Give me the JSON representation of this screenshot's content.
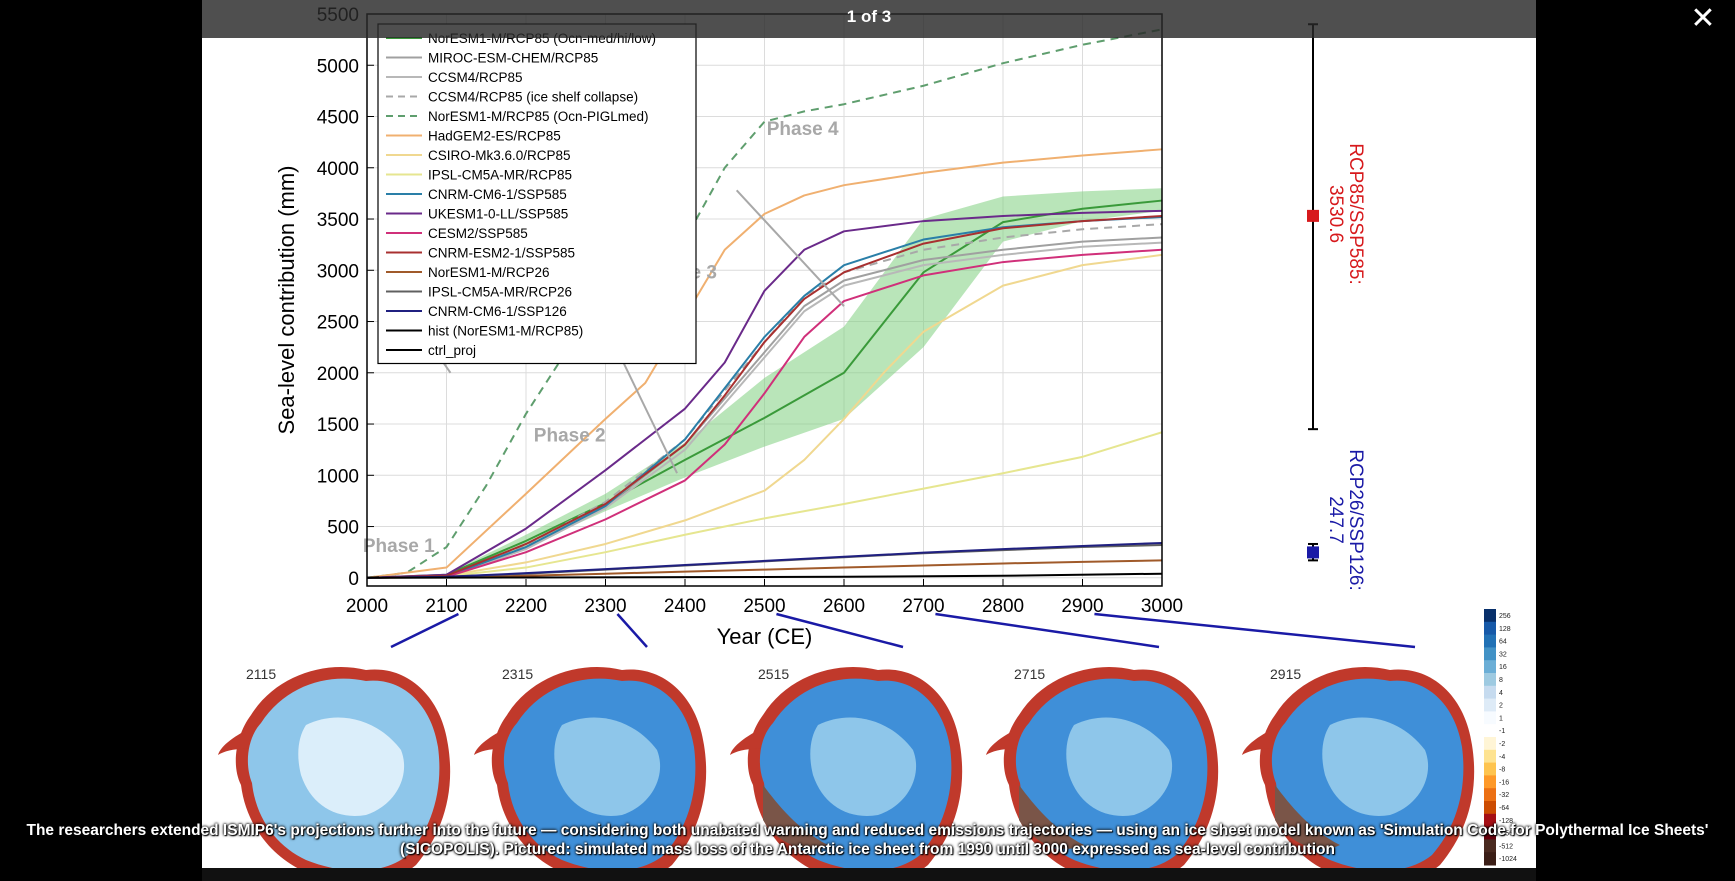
{
  "viewer": {
    "counter": "1 of 3",
    "close_glyph": "✕",
    "caption_line1": "The researchers extended ISMIP6's projections further into the future — considering both unabated warming and reduced emissions trajectories — using an ice sheet model known as 'Simulation Code for Polythermal Ice Sheets'",
    "caption_line2": "(SICOPOLIS). Pictured: simulated mass loss of the Antarctic ice sheet from 1990 until 3000 expressed as sea-level contribution"
  },
  "colors": {
    "red": "#d7191c",
    "blue": "#1a1aa6",
    "ensemble_fill": "#7fcf7f",
    "phase_label": "#a8a8a8"
  },
  "chart_data": {
    "type": "line",
    "xlabel": "Year (CE)",
    "ylabel": "Sea-level contribution (mm)",
    "xlim": [
      2000,
      3000
    ],
    "ylim": [
      -80,
      5500
    ],
    "xticks": [
      2000,
      2100,
      2200,
      2300,
      2400,
      2500,
      2600,
      2700,
      2800,
      2900,
      3000
    ],
    "yticks": [
      0,
      500,
      1000,
      1500,
      2000,
      2500,
      3000,
      3500,
      4000,
      4500,
      5000,
      5500
    ],
    "grid": true,
    "legend_position": "top-left",
    "phases": [
      {
        "label": "Phase 1",
        "x": 2040,
        "y": 250
      },
      {
        "label": "Phase 2",
        "x": 2255,
        "y": 1330
      },
      {
        "label": "Phase 3",
        "x": 2395,
        "y": 2920
      },
      {
        "label": "Phase 4",
        "x": 2548,
        "y": 4320
      }
    ],
    "band": {
      "x": [
        2100,
        2200,
        2300,
        2400,
        2500,
        2600,
        2700,
        2800,
        2900,
        3000
      ],
      "upper": [
        40,
        420,
        820,
        1320,
        1950,
        2450,
        3500,
        3720,
        3770,
        3800
      ],
      "lower": [
        20,
        300,
        650,
        980,
        1280,
        1550,
        2250,
        3280,
        3480,
        3580
      ]
    },
    "series": [
      {
        "name": "NorESM1-M/RCP85 (Ocn-med/hi/low)",
        "color": "#3a9a3a",
        "dash": false,
        "x": [
          2000,
          2100,
          2200,
          2300,
          2400,
          2500,
          2600,
          2700,
          2800,
          2900,
          3000
        ],
        "y": [
          0,
          30,
          360,
          730,
          1150,
          1560,
          2000,
          2980,
          3470,
          3600,
          3680
        ]
      },
      {
        "name": "MIROC-ESM-CHEM/RCP85",
        "color": "#a0a0a0",
        "dash": false,
        "x": [
          2000,
          2100,
          2200,
          2300,
          2400,
          2500,
          2550,
          2600,
          2700,
          2800,
          2900,
          3000
        ],
        "y": [
          0,
          10,
          300,
          700,
          1300,
          2200,
          2650,
          2900,
          3100,
          3200,
          3280,
          3320
        ]
      },
      {
        "name": "CCSM4/RCP85",
        "color": "#b8b8b8",
        "dash": false,
        "x": [
          2000,
          2100,
          2200,
          2300,
          2400,
          2500,
          2550,
          2600,
          2700,
          2800,
          2900,
          3000
        ],
        "y": [
          0,
          10,
          280,
          680,
          1250,
          2150,
          2600,
          2850,
          3050,
          3150,
          3230,
          3270
        ]
      },
      {
        "name": "CCSM4/RCP85 (ice shelf collapse)",
        "color": "#a8a8a8",
        "dash": true,
        "x": [
          2000,
          2100,
          2200,
          2300,
          2400,
          2500,
          2550,
          2600,
          2700,
          2800,
          2900,
          3000
        ],
        "y": [
          0,
          15,
          320,
          740,
          1350,
          2300,
          2750,
          2980,
          3200,
          3320,
          3400,
          3450
        ]
      },
      {
        "name": "NorESM1-M/RCP85 (Ocn-PIGLmed)",
        "color": "#5f9e6e",
        "dash": true,
        "x": [
          2000,
          2050,
          2100,
          2150,
          2200,
          2250,
          2300,
          2350,
          2400,
          2450,
          2500,
          2550,
          2600,
          2700,
          2800,
          2900,
          3000
        ],
        "y": [
          0,
          50,
          300,
          900,
          1600,
          2200,
          2500,
          2800,
          3300,
          4000,
          4450,
          4550,
          4620,
          4800,
          5020,
          5200,
          5350
        ]
      },
      {
        "name": "HadGEM2-ES/RCP85",
        "color": "#f0b070",
        "dash": false,
        "x": [
          2000,
          2100,
          2200,
          2300,
          2350,
          2400,
          2450,
          2500,
          2550,
          2600,
          2700,
          2800,
          2900,
          3000
        ],
        "y": [
          0,
          100,
          820,
          1550,
          1900,
          2550,
          3200,
          3550,
          3730,
          3830,
          3950,
          4050,
          4120,
          4180
        ]
      },
      {
        "name": "CSIRO-Mk3.6.0/RCP85",
        "color": "#f0d890",
        "dash": false,
        "x": [
          2000,
          2100,
          2200,
          2300,
          2400,
          2500,
          2550,
          2600,
          2650,
          2700,
          2800,
          2900,
          3000
        ],
        "y": [
          0,
          20,
          150,
          330,
          560,
          850,
          1150,
          1550,
          2000,
          2400,
          2850,
          3050,
          3150
        ]
      },
      {
        "name": "IPSL-CM5A-MR/RCP85",
        "color": "#e6e690",
        "dash": false,
        "x": [
          2000,
          2100,
          2200,
          2300,
          2400,
          2500,
          2600,
          2700,
          2800,
          2900,
          3000
        ],
        "y": [
          0,
          15,
          100,
          250,
          420,
          580,
          720,
          870,
          1020,
          1180,
          1420
        ]
      },
      {
        "name": "CNRM-CM6-1/SSP585",
        "color": "#2a7fa8",
        "dash": false,
        "x": [
          2000,
          2100,
          2200,
          2300,
          2400,
          2450,
          2500,
          2550,
          2600,
          2700,
          2800,
          2900,
          3000
        ],
        "y": [
          0,
          15,
          300,
          700,
          1350,
          1850,
          2350,
          2750,
          3050,
          3300,
          3420,
          3480,
          3520
        ]
      },
      {
        "name": "UKESM1-0-LL/SSP585",
        "color": "#6a2a8a",
        "dash": false,
        "x": [
          2000,
          2100,
          2200,
          2300,
          2400,
          2450,
          2500,
          2550,
          2600,
          2700,
          2800,
          2900,
          3000
        ],
        "y": [
          0,
          30,
          480,
          1050,
          1650,
          2100,
          2800,
          3200,
          3380,
          3480,
          3530,
          3560,
          3580
        ]
      },
      {
        "name": "CESM2/SSP585",
        "color": "#d0307a",
        "dash": false,
        "x": [
          2000,
          2100,
          2200,
          2300,
          2400,
          2450,
          2500,
          2550,
          2600,
          2700,
          2800,
          2900,
          3000
        ],
        "y": [
          0,
          10,
          250,
          570,
          950,
          1300,
          1800,
          2350,
          2700,
          2950,
          3080,
          3150,
          3200
        ]
      },
      {
        "name": "CNRM-ESM2-1/SSP585",
        "color": "#a83030",
        "dash": false,
        "x": [
          2000,
          2100,
          2200,
          2300,
          2400,
          2450,
          2500,
          2550,
          2600,
          2700,
          2800,
          2900,
          3000
        ],
        "y": [
          0,
          20,
          330,
          720,
          1300,
          1780,
          2300,
          2720,
          2980,
          3260,
          3410,
          3480,
          3530
        ]
      },
      {
        "name": "NorESM1-M/RCP26",
        "color": "#a05a2a",
        "dash": false,
        "x": [
          2000,
          2100,
          2200,
          2300,
          2400,
          2500,
          2600,
          2700,
          2800,
          2900,
          3000
        ],
        "y": [
          0,
          5,
          20,
          40,
          60,
          80,
          100,
          120,
          140,
          155,
          170
        ]
      },
      {
        "name": "IPSL-CM5A-MR/RCP26",
        "color": "#606060",
        "dash": false,
        "x": [
          2000,
          2100,
          2200,
          2300,
          2400,
          2500,
          2600,
          2700,
          2800,
          2900,
          3000
        ],
        "y": [
          0,
          10,
          40,
          80,
          120,
          160,
          200,
          240,
          270,
          300,
          320
        ]
      },
      {
        "name": "CNRM-CM6-1/SSP126",
        "color": "#202080",
        "dash": false,
        "x": [
          2000,
          2100,
          2200,
          2300,
          2400,
          2500,
          2600,
          2700,
          2800,
          2900,
          3000
        ],
        "y": [
          0,
          10,
          45,
          85,
          125,
          165,
          205,
          245,
          280,
          310,
          340
        ]
      },
      {
        "name": "hist (NorESM1-M/RCP85)",
        "color": "#000000",
        "dash": false,
        "x": [
          1990,
          2015
        ],
        "y": [
          0,
          5
        ]
      },
      {
        "name": "ctrl_proj",
        "color": "#000000",
        "dash": false,
        "x": [
          2000,
          2200,
          2400,
          2600,
          2800,
          3000
        ],
        "y": [
          0,
          3,
          6,
          10,
          20,
          40
        ]
      }
    ],
    "right_annotations": [
      {
        "label": "RCP85/SSP585:",
        "value": "3530.6",
        "color": "#d7191c",
        "mean": 3530.6,
        "low": 1450,
        "high": 5400
      },
      {
        "label": "RCP26/SSP126:",
        "value": "247.7",
        "color": "#1a1aa6",
        "mean": 247.7,
        "low": 170,
        "high": 330
      }
    ],
    "map_years": [
      "2115",
      "2315",
      "2515",
      "2715",
      "2915"
    ],
    "map_links": [
      2115,
      2315,
      2515,
      2715,
      2915
    ],
    "colorbar_ticks": [
      "256",
      "128",
      "64",
      "32",
      "16",
      "8",
      "4",
      "2",
      "1",
      "-1",
      "-2",
      "-4",
      "-8",
      "-16",
      "-32",
      "-64",
      "-128",
      "-256",
      "-512",
      "-1024"
    ]
  }
}
